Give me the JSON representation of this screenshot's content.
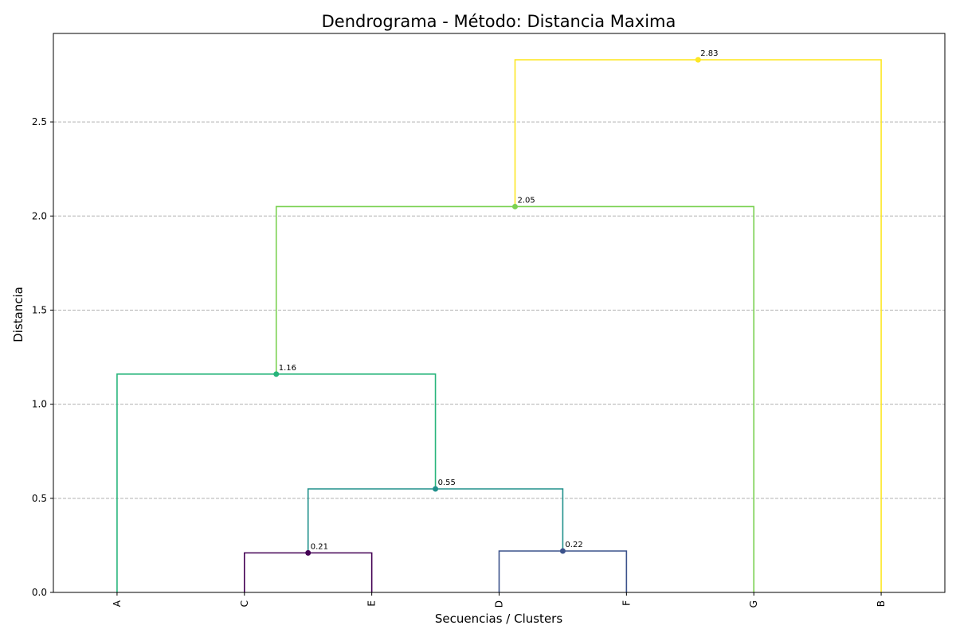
{
  "chart_data": {
    "type": "dendrogram",
    "title": "Dendrograma - Método: Distancia Maxima",
    "xlabel": "Secuencias / Clusters",
    "ylabel": "Distancia",
    "ylim": [
      0,
      2.97
    ],
    "yticks": [
      "0.0",
      "0.5",
      "1.0",
      "1.5",
      "2.0",
      "2.5"
    ],
    "ytick_values": [
      0,
      0.5,
      1.0,
      1.5,
      2.0,
      2.5
    ],
    "grid": "horizontal dashed",
    "leaves": [
      "A",
      "C",
      "E",
      "D",
      "F",
      "G",
      "B"
    ],
    "merges": [
      {
        "label": "0.21",
        "height": 0.21,
        "left": "C",
        "right": "E",
        "color": "#440154"
      },
      {
        "label": "0.22",
        "height": 0.22,
        "left": "D",
        "right": "F",
        "color": "#3b528b"
      },
      {
        "label": "0.55",
        "height": 0.55,
        "left": "C+E",
        "right": "D+F",
        "color": "#21918c"
      },
      {
        "label": "1.16",
        "height": 1.16,
        "left": "A",
        "right": "C+E+D+F",
        "color": "#27b47b"
      },
      {
        "label": "2.05",
        "height": 2.05,
        "left": "A+C+E+D+F",
        "right": "G",
        "color": "#7ad151"
      },
      {
        "label": "2.83",
        "height": 2.83,
        "left": "A+C+E+D+F+G",
        "right": "B",
        "color": "#fde725"
      }
    ]
  }
}
